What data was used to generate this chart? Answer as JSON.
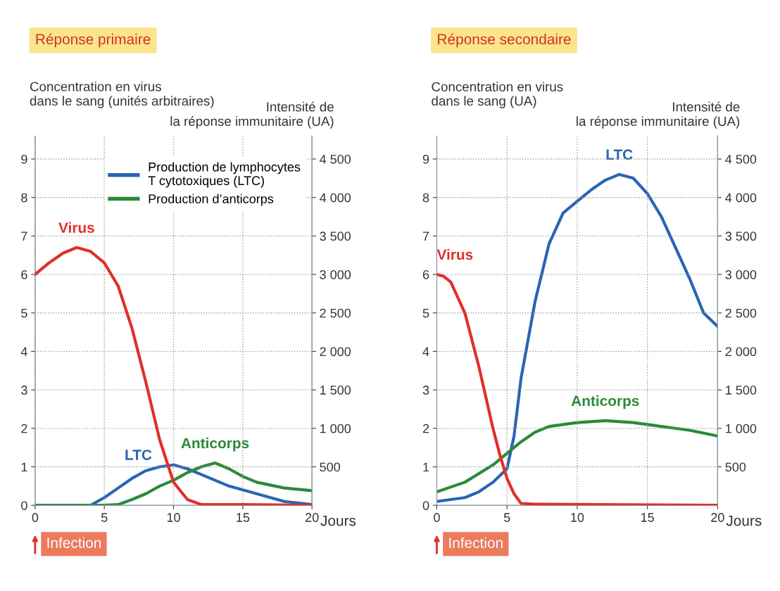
{
  "chart_data": [
    {
      "type": "line",
      "title": "Réponse primaire",
      "ylabel": "Concentration en virus\ndans le sang (unités arbitraires)",
      "y2label": "Intensité de\nla réponse immunitaire (UA)",
      "xlabel": "Jours",
      "xlim": [
        0,
        20
      ],
      "xticks": [
        0,
        5,
        10,
        15,
        20
      ],
      "ylim": [
        0,
        9.6
      ],
      "yticks": [
        0,
        1,
        2,
        3,
        4,
        5,
        6,
        7,
        8,
        9
      ],
      "y2lim": [
        0,
        4800
      ],
      "y2ticks": [
        500,
        {
          "value": 1000,
          "label": "1 000"
        },
        {
          "value": 1500,
          "label": "1 500"
        },
        {
          "value": 2000,
          "label": "2 000"
        },
        {
          "value": 2500,
          "label": "2 500"
        },
        {
          "value": 3000,
          "label": "3 000"
        },
        {
          "value": 3500,
          "label": "3 500"
        },
        {
          "value": 4000,
          "label": "4 000"
        },
        {
          "value": 4500,
          "label": "4 500"
        }
      ],
      "grid": true,
      "legend": "top right",
      "line_style": "solid",
      "marker": "none",
      "series": [
        {
          "color": "#e0302a",
          "x": [
            0,
            1,
            2,
            3,
            4,
            5,
            6,
            7,
            8,
            9,
            10,
            11,
            12,
            15,
            20
          ],
          "values": [
            6.0,
            6.3,
            6.55,
            6.7,
            6.6,
            6.3,
            5.7,
            4.6,
            3.2,
            1.7,
            0.6,
            0.15,
            0.02,
            0.02,
            0.0
          ]
        },
        {
          "name": "Production de lymphocytes\nT cytotoxiques (LTC)",
          "color": "#2a64b4",
          "axis": "y2",
          "x": [
            0,
            4,
            5,
            6,
            7,
            8,
            9,
            10,
            11,
            12,
            13,
            14,
            15,
            17,
            18,
            20
          ],
          "values": [
            0,
            0,
            100,
            225,
            350,
            450,
            500,
            525,
            475,
            400,
            325,
            250,
            200,
            100,
            50,
            10
          ]
        },
        {
          "name": "Production d’anticorps",
          "color": "#2a8a3a",
          "axis": "y2",
          "x": [
            0,
            5,
            6,
            7,
            8,
            9,
            10,
            11,
            12,
            13,
            14,
            15,
            16,
            18,
            20
          ],
          "values": [
            0,
            0,
            10,
            75,
            150,
            250,
            325,
            425,
            500,
            550,
            475,
            375,
            300,
            225,
            190
          ]
        }
      ],
      "annotations": [
        "Virus",
        "LTC",
        "Anticorps",
        "Infection"
      ]
    },
    {
      "type": "line",
      "title": "Réponse secondaire",
      "ylabel": "Concentration en virus\ndans le sang (UA)",
      "y2label": "Intensité de\nla réponse immunitaire (UA)",
      "xlabel": "Jours",
      "xlim": [
        0,
        20
      ],
      "xticks": [
        0,
        5,
        10,
        15,
        20
      ],
      "ylim": [
        0,
        9.6
      ],
      "yticks": [
        0,
        1,
        2,
        3,
        4,
        5,
        6,
        7,
        8,
        9
      ],
      "y2lim": [
        0,
        4800
      ],
      "y2ticks": [
        500,
        {
          "value": 1000,
          "label": "1 000"
        },
        {
          "value": 1500,
          "label": "1 500"
        },
        {
          "value": 2000,
          "label": "2 000"
        },
        {
          "value": 2500,
          "label": "2 500"
        },
        {
          "value": 3000,
          "label": "3 000"
        },
        {
          "value": 3500,
          "label": "3 500"
        },
        {
          "value": 4000,
          "label": "4 000"
        },
        {
          "value": 4500,
          "label": "4 500"
        }
      ],
      "grid": true,
      "line_style": "solid",
      "marker": "none",
      "series": [
        {
          "color": "#e0302a",
          "x": [
            0,
            0.5,
            1,
            2,
            3,
            4,
            4.5,
            5,
            5.5,
            6,
            7,
            20
          ],
          "values": [
            6.0,
            5.95,
            5.8,
            5.0,
            3.6,
            2.0,
            1.3,
            0.7,
            0.3,
            0.05,
            0.03,
            0.0
          ]
        },
        {
          "color": "#2a64b4",
          "axis": "y2",
          "x": [
            0,
            2,
            3,
            4,
            5,
            5.5,
            6,
            7,
            8,
            9,
            10,
            11,
            12,
            13,
            14,
            15,
            16,
            17,
            18,
            19,
            20
          ],
          "values": [
            50,
            100,
            175,
            300,
            475,
            900,
            1650,
            2650,
            3400,
            3800,
            3950,
            4100,
            4225,
            4300,
            4250,
            4050,
            3750,
            3350,
            2950,
            2500,
            2325
          ]
        },
        {
          "color": "#2a8a3a",
          "axis": "y2",
          "x": [
            0,
            2,
            4,
            5,
            6,
            7,
            8,
            10,
            12,
            14,
            16,
            18,
            20
          ],
          "values": [
            175,
            300,
            525,
            675,
            825,
            950,
            1025,
            1075,
            1100,
            1075,
            1025,
            975,
            900
          ]
        }
      ],
      "annotations": [
        "Virus",
        "LTC",
        "Anticorps",
        "Infection"
      ]
    }
  ]
}
